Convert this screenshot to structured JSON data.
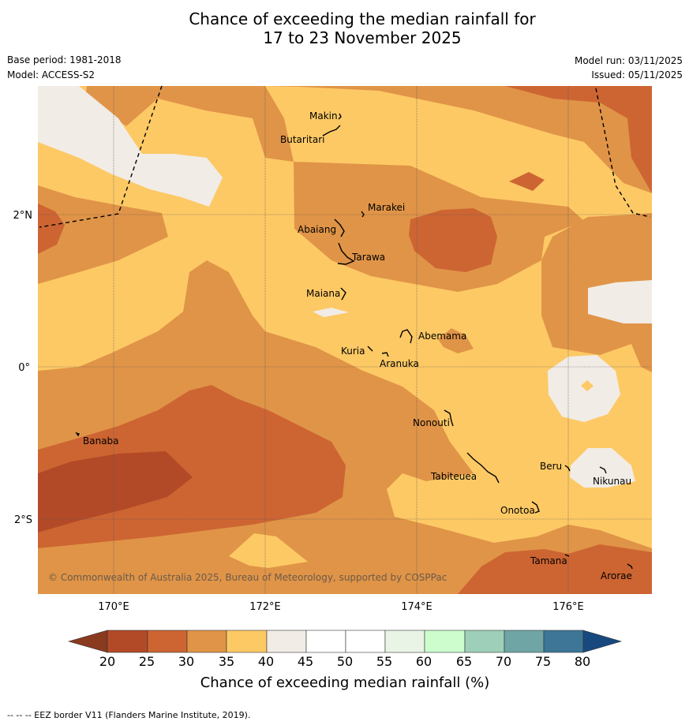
{
  "title": {
    "line1": "Chance of exceeding the median rainfall for",
    "line2": "17 to 23 November 2025"
  },
  "meta": {
    "base_period": "Base period: 1981-2018",
    "model": "Model: ACCESS-S2",
    "model_run": "Model run: 03/11/2025",
    "issued": "Issued: 05/11/2025"
  },
  "axes": {
    "lon_ticks": [
      "170°E",
      "172°E",
      "174°E",
      "176°E"
    ],
    "lat_ticks": [
      "2°N",
      "0°",
      "2°S"
    ]
  },
  "islands": [
    "Makin",
    "Butaritari",
    "Marakei",
    "Abaiang",
    "Tarawa",
    "Maiana",
    "Abemama",
    "Kuria",
    "Aranuka",
    "Nonouti",
    "Banaba",
    "Tabiteuea",
    "Beru",
    "Nikunau",
    "Onotoa",
    "Tamana",
    "Arorae"
  ],
  "copyright": "© Commonwealth of Australia 2025, Bureau of Meteorology, supported by COSPPac",
  "colorbar": {
    "label": "Chance of exceeding median rainfall (%)",
    "ticks": [
      "20",
      "25",
      "30",
      "35",
      "40",
      "45",
      "50",
      "55",
      "60",
      "65",
      "70",
      "75",
      "80"
    ],
    "colors": {
      "under": "#8a3a1e",
      "b20_25": "#b24a28",
      "b25_30": "#cd6533",
      "b30_35": "#e09447",
      "b35_40": "#fdc965",
      "b40_45": "#f1ece6",
      "b45_50": "#ffffff",
      "b50_55": "#ffffff",
      "b55_60": "#eaf4e6",
      "b60_65": "#cdfdcc",
      "b65_70": "#9ed0b9",
      "b70_75": "#6fa5a5",
      "b75_80": "#3d7696",
      "over": "#17497f"
    }
  },
  "footnote": "-- -- -- EEZ border V11 (Flanders Marine Institute, 2019)."
}
